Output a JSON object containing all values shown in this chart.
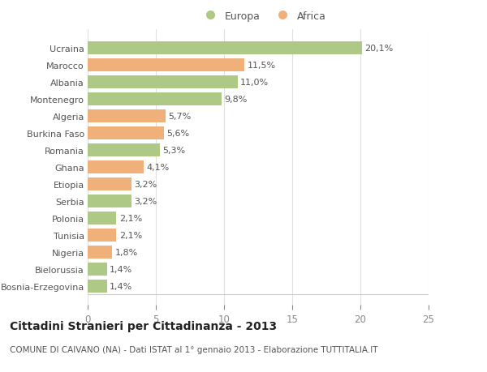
{
  "categories": [
    "Bosnia-Erzegovina",
    "Bielorussia",
    "Nigeria",
    "Tunisia",
    "Polonia",
    "Serbia",
    "Etiopia",
    "Ghana",
    "Romania",
    "Burkina Faso",
    "Algeria",
    "Montenegro",
    "Albania",
    "Marocco",
    "Ucraina"
  ],
  "values": [
    1.4,
    1.4,
    1.8,
    2.1,
    2.1,
    3.2,
    3.2,
    4.1,
    5.3,
    5.6,
    5.7,
    9.8,
    11.0,
    11.5,
    20.1
  ],
  "labels": [
    "1,4%",
    "1,4%",
    "1,8%",
    "2,1%",
    "2,1%",
    "3,2%",
    "3,2%",
    "4,1%",
    "5,3%",
    "5,6%",
    "5,7%",
    "9,8%",
    "11,0%",
    "11,5%",
    "20,1%"
  ],
  "continents": [
    "Europa",
    "Europa",
    "Africa",
    "Africa",
    "Europa",
    "Europa",
    "Africa",
    "Africa",
    "Europa",
    "Africa",
    "Africa",
    "Europa",
    "Europa",
    "Africa",
    "Europa"
  ],
  "color_europa": "#aec986",
  "color_africa": "#f0b07a",
  "background_color": "#ffffff",
  "grid_color": "#e0e0e0",
  "title": "Cittadini Stranieri per Cittadinanza - 2013",
  "subtitle": "COMUNE DI CAIVANO (NA) - Dati ISTAT al 1° gennaio 2013 - Elaborazione TUTTITALIA.IT",
  "legend_europa": "Europa",
  "legend_africa": "Africa",
  "xlim": [
    0,
    25
  ],
  "xticks": [
    0,
    5,
    10,
    15,
    20,
    25
  ],
  "bar_height": 0.75,
  "label_fontsize": 8,
  "ytick_fontsize": 8,
  "xtick_fontsize": 8.5,
  "title_fontsize": 10,
  "subtitle_fontsize": 7.5,
  "label_color": "#555555",
  "title_color": "#222222",
  "subtitle_color": "#555555"
}
